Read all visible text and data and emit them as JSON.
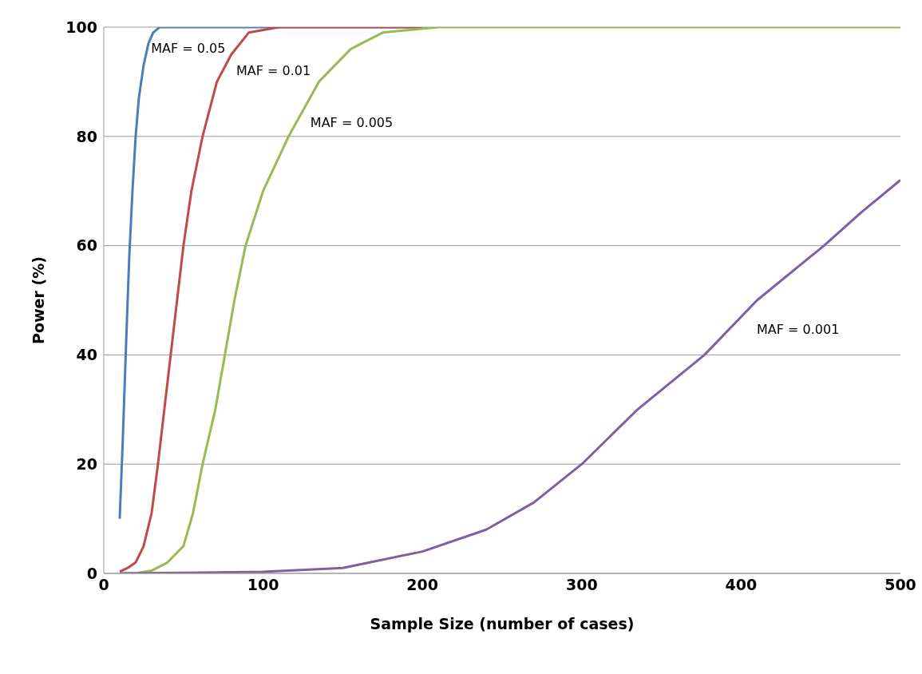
{
  "chart_data": {
    "type": "line",
    "xlabel": "Sample Size (number of cases)",
    "ylabel": "Power (%)",
    "xlim": [
      0,
      500
    ],
    "xticks": [
      0,
      100,
      200,
      300,
      400,
      500
    ],
    "ylim": [
      0,
      100
    ],
    "yticks": [
      0,
      20,
      40,
      60,
      80,
      100
    ],
    "grid": "y",
    "legend": false,
    "marker": "none",
    "line_style": "solid",
    "series": [
      {
        "color": "#4a7ebb",
        "x": [
          10,
          12,
          14,
          16,
          18,
          20,
          22,
          25,
          28,
          31,
          35,
          60,
          100,
          200
        ],
        "values": [
          10,
          25,
          42,
          58,
          70,
          80,
          87,
          93,
          97,
          99,
          100,
          100,
          100,
          100
        ]
      },
      {
        "color": "#be4b48",
        "x": [
          10,
          15,
          20,
          25,
          30,
          34,
          38,
          42,
          46,
          50,
          55,
          62,
          71,
          80,
          91,
          110,
          150,
          200
        ],
        "values": [
          0.3,
          1,
          2,
          5,
          11,
          20,
          30,
          40,
          50,
          60,
          70,
          80,
          90,
          95,
          99,
          100,
          100,
          100
        ]
      },
      {
        "color": "#98b954",
        "x": [
          10,
          20,
          30,
          40,
          50,
          56,
          62,
          70,
          76,
          82,
          89,
          100,
          116,
          135,
          155,
          175,
          210,
          300,
          400,
          500
        ],
        "values": [
          0,
          0,
          0.5,
          2,
          5,
          11,
          20,
          30,
          40,
          50,
          60,
          70,
          80,
          90,
          96,
          99,
          100,
          100,
          100,
          100
        ]
      },
      {
        "color": "#7d60a0",
        "x": [
          10,
          50,
          100,
          150,
          200,
          240,
          270,
          300,
          335,
          377,
          410,
          452,
          475,
          500
        ],
        "values": [
          0,
          0.1,
          0.3,
          1,
          4,
          8,
          13,
          20,
          30,
          40,
          50,
          60,
          66,
          72
        ]
      }
    ],
    "annotations": [
      "MAF = 0.05",
      "MAF = 0.01",
      "MAF = 0.005",
      "MAF = 0.001"
    ]
  }
}
